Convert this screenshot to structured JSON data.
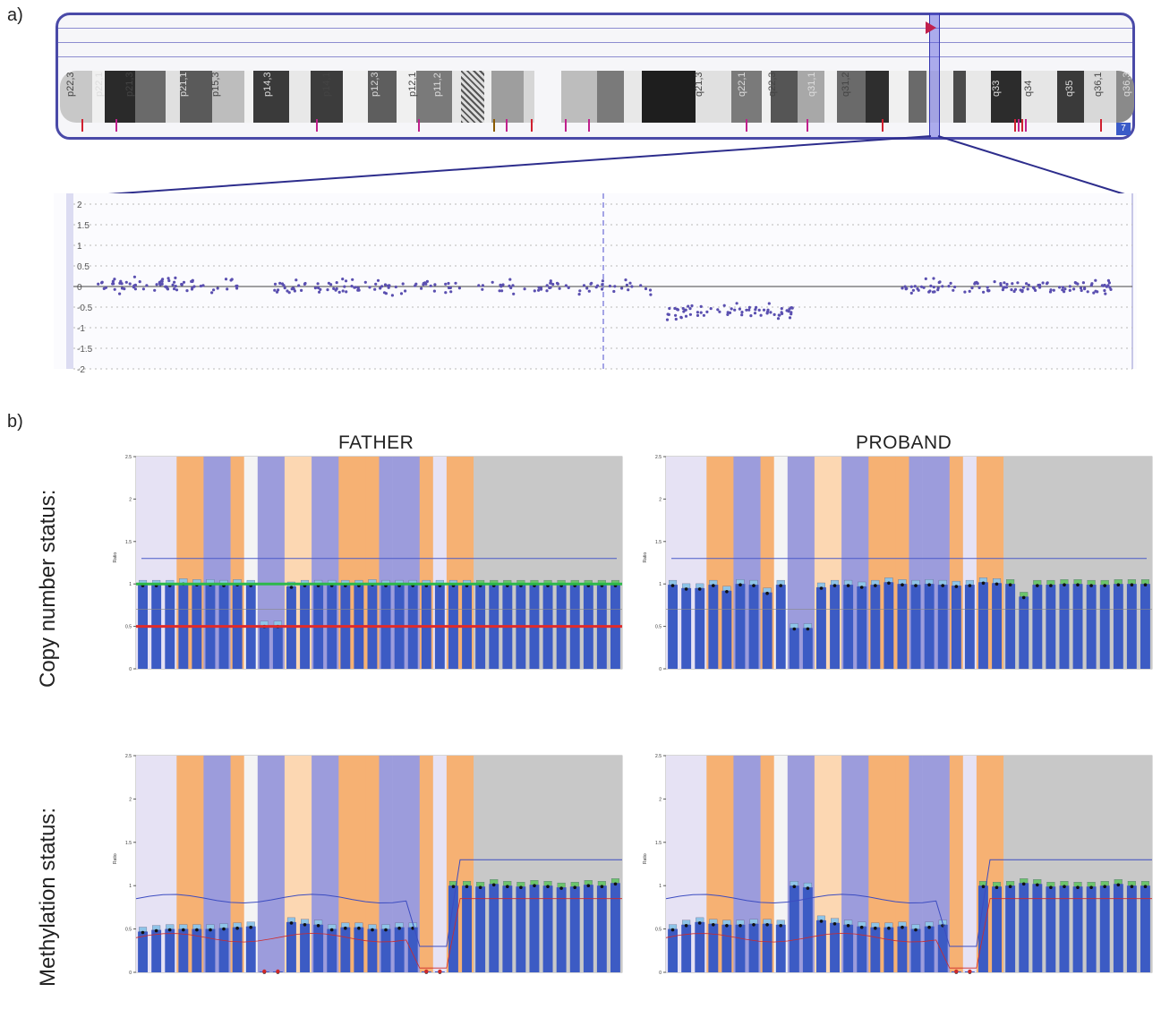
{
  "panel_a": {
    "label": "a)",
    "chromosome_number": "7",
    "band_labels": [
      "p22,3",
      "p22,1",
      "p21,3",
      "p21,1",
      "p15,3",
      "p14,3",
      "p14,1",
      "p12,3",
      "p12,1",
      "p11,2",
      "q21,3",
      "q22,1",
      "q22,3",
      "q31,1",
      "q31,2",
      "q33",
      "q34",
      "q35",
      "q36,1",
      "q36,3"
    ],
    "scatter_yticks": [
      "2",
      "1.5",
      "1",
      "0.5",
      "0",
      "-0.5",
      "-1",
      "-1.5",
      "-2"
    ]
  },
  "panel_b": {
    "label": "b)",
    "col_titles": [
      "FATHER",
      "PROBAND"
    ],
    "row_titles": [
      "Copy number status:",
      "Methylation status:"
    ],
    "yticks": [
      "2.5",
      "2",
      "1.5",
      "1",
      "0.5",
      "0"
    ],
    "axis_label": "Ratio"
  },
  "chart_data": [
    {
      "type": "scatter",
      "xlabel": "",
      "ylabel": "",
      "ylim": [
        -2,
        2
      ],
      "grid": true,
      "clusters": [
        {
          "x_range": [
            0.02,
            0.16
          ],
          "y_mean": 0.05,
          "n": 70
        },
        {
          "x_range": [
            0.19,
            0.36
          ],
          "y_mean": 0.0,
          "n": 80
        },
        {
          "x_range": [
            0.36,
            0.55
          ],
          "y_mean": 0.0,
          "n": 60
        },
        {
          "x_range": [
            0.56,
            0.68
          ],
          "y_mean": -0.6,
          "n": 70
        },
        {
          "x_range": [
            0.7,
            0.82
          ],
          "y_mean": 0.0,
          "n": 0
        },
        {
          "x_range": [
            0.78,
            0.98
          ],
          "y_mean": 0.0,
          "n": 110
        }
      ]
    },
    {
      "type": "bar",
      "title": "FATHER",
      "ylabel": "Ratio",
      "ylim": [
        0,
        2.5
      ],
      "values": [
        0.99,
        0.99,
        0.99,
        1.01,
        1.0,
        1.0,
        0.99,
        1.0,
        0.99,
        0.51,
        0.51,
        0.97,
        0.99,
        0.99,
        0.99,
        0.99,
        0.99,
        1.0,
        0.99,
        0.99,
        0.99,
        0.99,
        0.99,
        0.99,
        0.99,
        0.99,
        0.99,
        0.99,
        0.99,
        0.99,
        0.99,
        0.99,
        0.99,
        0.99,
        0.99,
        0.99
      ]
    },
    {
      "type": "bar",
      "title": "PROBAND",
      "ylabel": "Ratio",
      "ylim": [
        0,
        2.5
      ],
      "values": [
        0.99,
        0.95,
        0.95,
        0.99,
        0.92,
        1.0,
        0.99,
        0.9,
        0.99,
        0.48,
        0.48,
        0.96,
        0.99,
        0.99,
        0.97,
        0.99,
        1.02,
        1.0,
        0.99,
        1.0,
        0.99,
        0.98,
        0.99,
        1.02,
        1.01,
        1.0,
        0.85,
        0.99,
        0.99,
        1.0,
        1.0,
        0.99,
        0.99,
        1.0,
        1.0,
        1.0
      ]
    },
    {
      "type": "bar",
      "title": "FATHER",
      "ylabel": "Ratio",
      "ylim": [
        0,
        2.5
      ],
      "values": [
        0.47,
        0.49,
        0.5,
        0.5,
        0.5,
        0.5,
        0.51,
        0.52,
        0.53,
        0.01,
        0.01,
        0.58,
        0.56,
        0.55,
        0.5,
        0.52,
        0.52,
        0.5,
        0.5,
        0.52,
        0.52,
        0.01,
        0.01,
        1.0,
        1.0,
        0.99,
        1.02,
        1.0,
        0.99,
        1.01,
        1.0,
        0.98,
        0.99,
        1.01,
        1.0,
        1.03
      ]
    },
    {
      "type": "bar",
      "title": "PROBAND",
      "ylabel": "Ratio",
      "ylim": [
        0,
        2.5
      ],
      "values": [
        0.5,
        0.55,
        0.58,
        0.56,
        0.55,
        0.55,
        0.56,
        0.56,
        0.55,
        1.0,
        0.98,
        0.6,
        0.57,
        0.55,
        0.53,
        0.52,
        0.52,
        0.53,
        0.5,
        0.53,
        0.55,
        0.01,
        0.01,
        1.0,
        0.99,
        1.0,
        1.03,
        1.02,
        0.99,
        1.0,
        0.99,
        0.99,
        1.0,
        1.02,
        1.0,
        1.0
      ]
    }
  ]
}
